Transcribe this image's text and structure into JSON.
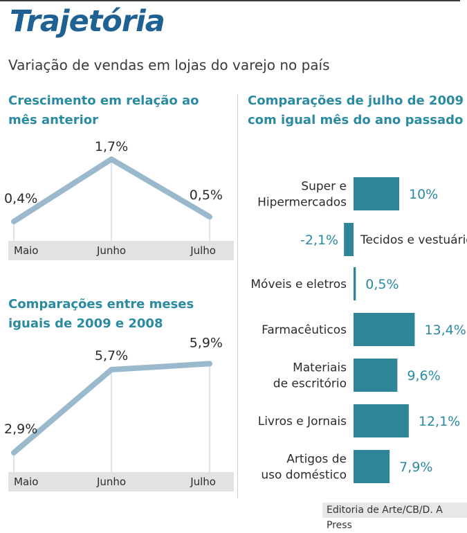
{
  "title": "Trajetória",
  "subtitle": "Variação de vendas em lojas do varejo no país",
  "source": "Editoria de Arte/CB/D. A Press",
  "colors": {
    "title": "#1f6193",
    "accent": "#2a8aa2",
    "line": "#9bb9cc",
    "bar": "#2d8597",
    "axis_band": "#e2e2e2"
  },
  "chart_data": [
    {
      "type": "line",
      "title": "Crescimento em relação ao\nmês anterior",
      "categories": [
        "Maio",
        "Junho",
        "Julho"
      ],
      "values": [
        0.4,
        1.7,
        0.5
      ],
      "labels": [
        "0,4%",
        "1,7%",
        "0,5%"
      ],
      "unit": "%"
    },
    {
      "type": "line",
      "title": "Comparações entre meses\niguais de 2009 e 2008",
      "categories": [
        "Maio",
        "Junho",
        "Julho"
      ],
      "values": [
        2.9,
        5.7,
        5.9
      ],
      "labels": [
        "2,9%",
        "5,7%",
        "5,9%"
      ],
      "unit": "%"
    },
    {
      "type": "bar",
      "orientation": "horizontal",
      "title": "Comparações de julho de 2009\ncom igual mês do ano passado",
      "categories": [
        "Super e\nHipermercados",
        "Tecidos e vestuário",
        "Móveis e eletros",
        "Farmacêuticos",
        "Materiais\nde escritório",
        "Livros e Jornais",
        "Artigos de\nuso doméstico"
      ],
      "values": [
        10,
        -2.1,
        0.5,
        13.4,
        9.6,
        12.1,
        7.9
      ],
      "labels": [
        "10%",
        "-2,1%",
        "0,5%",
        "13,4%",
        "9,6%",
        "12,1%",
        "7,9%"
      ],
      "unit": "%"
    }
  ]
}
